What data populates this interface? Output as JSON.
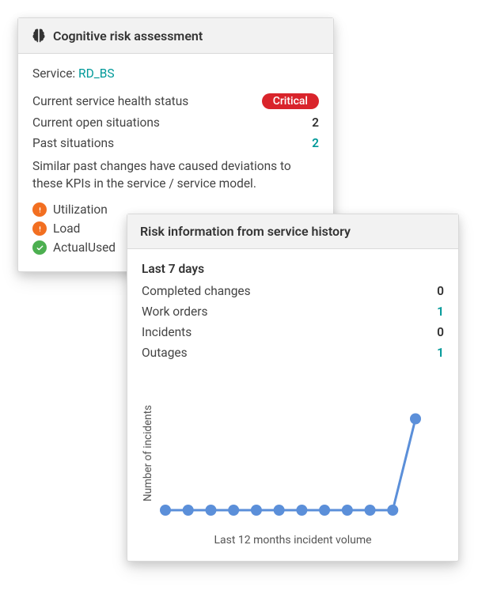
{
  "card1": {
    "title": "Cognitive risk assessment",
    "service_label": "Service:",
    "service_name": "RD_BS",
    "health_label": "Current service health status",
    "health_status": "Critical",
    "open_label": "Current open situations",
    "open_value": "2",
    "past_label": "Past situations",
    "past_value": "2",
    "description": "Similar past changes have caused deviations to these KPIs in the service / service model.",
    "kpis": [
      {
        "name": "Utilization",
        "status": "warn"
      },
      {
        "name": "Load",
        "status": "warn"
      },
      {
        "name": "ActualUsed",
        "status": "ok"
      }
    ],
    "colors": {
      "critical_badge_bg": "#d9242b",
      "warn_dot": "#f26f21",
      "ok_dot": "#4caf50",
      "link": "#009999"
    }
  },
  "card2": {
    "title": "Risk information from service history",
    "period_label": "Last 7 days",
    "rows": [
      {
        "label": "Completed changes",
        "value": "0",
        "teal": false
      },
      {
        "label": "Work orders",
        "value": "1",
        "teal": true
      },
      {
        "label": "Incidents",
        "value": "0",
        "teal": false
      },
      {
        "label": "Outages",
        "value": "1",
        "teal": true
      }
    ],
    "chart": {
      "type": "line",
      "ylabel": "Number of incidents",
      "caption": "Last 12 months incident volume",
      "point_count": 12,
      "values": [
        0,
        0,
        0,
        0,
        0,
        0,
        0,
        0,
        0,
        0,
        0,
        6
      ],
      "ylim": [
        0,
        8
      ],
      "line_color": "#5b8fd9",
      "marker_color": "#5b8fd9",
      "marker_radius": 7,
      "line_width": 3,
      "background_color": "#ffffff"
    }
  }
}
